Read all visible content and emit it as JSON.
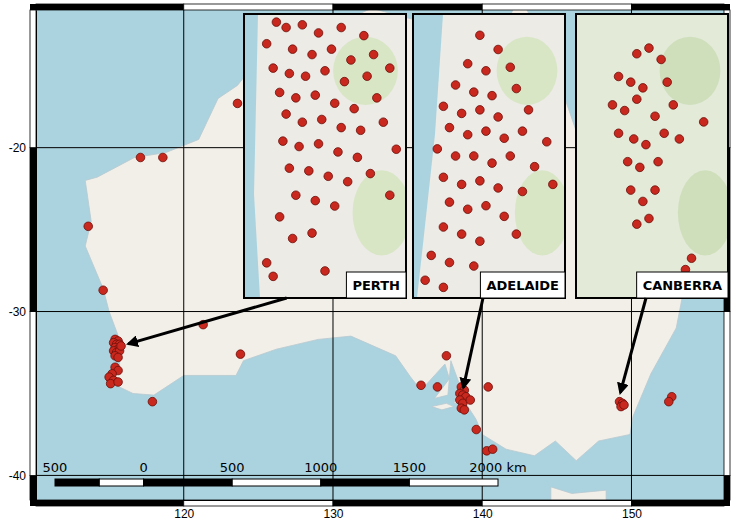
{
  "chart_data": {
    "type": "scatter",
    "xlim": [
      110.1,
      156.2
    ],
    "ylim": [
      -41.5,
      -11.6
    ],
    "xticks": [
      120,
      130,
      140,
      150
    ],
    "yticks": [
      -40,
      -30,
      -20
    ],
    "grid": true,
    "color": "#c8281e",
    "marker": "circle",
    "x": [
      117.1,
      118.6,
      123.6,
      113.6,
      114.6,
      115.4,
      115.6,
      115.3,
      115.5,
      115.7,
      115.4,
      115.6,
      115.3,
      115.5,
      115.7,
      115.4,
      115.6,
      115.8,
      115.4,
      115.6,
      115.2,
      115.0,
      115.3,
      115.1,
      115.6,
      117.9,
      121.3,
      123.8,
      135.9,
      137.0,
      137.6,
      138.6,
      138.8,
      138.5,
      138.7,
      138.9,
      138.5,
      138.7,
      138.6,
      138.8,
      139.2,
      140.4,
      140.3,
      140.7,
      139.6,
      149.2,
      149.4,
      149.3,
      149.5,
      152.7,
      152.5
    ],
    "y": [
      -20.6,
      -20.6,
      -17.3,
      -24.8,
      -28.7,
      -31.7,
      -31.8,
      -31.9,
      -32.0,
      -32.0,
      -32.2,
      -32.3,
      -32.4,
      -32.5,
      -32.4,
      -32.7,
      -32.8,
      -32.1,
      -33.4,
      -33.6,
      -33.8,
      -34.0,
      -34.2,
      -34.4,
      -34.3,
      -35.5,
      -30.8,
      -32.6,
      -34.5,
      -34.6,
      -32.7,
      -34.6,
      -34.8,
      -35.0,
      -35.1,
      -35.2,
      -35.4,
      -35.6,
      -35.9,
      -36.0,
      -35.4,
      -34.6,
      -38.5,
      -38.4,
      -37.2,
      -35.5,
      -35.6,
      -35.8,
      -35.7,
      -35.2,
      -35.5
    ],
    "insets": [
      {
        "title": "PERTH",
        "xlim": [
          115.65,
          116.15
        ],
        "ylim": [
          -32.6,
          -31.55
        ],
        "tick_labels": false,
        "x": [
          115.75,
          115.78,
          115.83,
          115.88,
          115.95,
          116.02,
          115.72,
          115.8,
          115.86,
          115.92,
          115.98,
          116.05,
          115.74,
          115.79,
          115.84,
          115.9,
          115.96,
          116.03,
          116.1,
          115.76,
          115.81,
          115.87,
          115.93,
          115.99,
          116.06,
          115.78,
          115.83,
          115.89,
          115.95,
          116.01,
          116.08,
          115.77,
          115.82,
          115.88,
          115.94,
          116.0,
          116.12,
          115.79,
          115.85,
          115.91,
          115.97,
          116.04,
          115.81,
          115.87,
          115.93,
          116.1,
          115.76,
          115.8,
          115.86,
          115.72,
          115.74,
          115.9
        ],
        "y": [
          -31.58,
          -31.6,
          -31.59,
          -31.62,
          -31.6,
          -31.63,
          -31.66,
          -31.68,
          -31.7,
          -31.68,
          -31.72,
          -31.7,
          -31.75,
          -31.77,
          -31.78,
          -31.76,
          -31.8,
          -31.78,
          -31.75,
          -31.84,
          -31.86,
          -31.85,
          -31.88,
          -31.9,
          -31.86,
          -31.92,
          -31.95,
          -31.94,
          -31.97,
          -31.98,
          -31.95,
          -32.02,
          -32.04,
          -32.03,
          -32.06,
          -32.08,
          -32.05,
          -32.12,
          -32.13,
          -32.15,
          -32.17,
          -32.14,
          -32.22,
          -32.24,
          -32.26,
          -32.22,
          -32.3,
          -32.38,
          -32.36,
          -32.47,
          -32.52,
          -32.5
        ]
      },
      {
        "title": "ADELAIDE",
        "xlim": [
          138.4,
          138.9
        ],
        "ylim": [
          -35.4,
          -34.6
        ],
        "tick_labels": false,
        "x": [
          138.62,
          138.68,
          138.58,
          138.64,
          138.72,
          138.54,
          138.6,
          138.66,
          138.74,
          138.5,
          138.56,
          138.62,
          138.68,
          138.78,
          138.52,
          138.58,
          138.64,
          138.7,
          138.76,
          138.84,
          138.48,
          138.54,
          138.6,
          138.66,
          138.72,
          138.8,
          138.5,
          138.56,
          138.62,
          138.68,
          138.76,
          138.86,
          138.52,
          138.58,
          138.64,
          138.7,
          138.5,
          138.56,
          138.62,
          138.74,
          138.46,
          138.52,
          138.6,
          138.44,
          138.5,
          138.66
        ],
        "y": [
          -34.66,
          -34.7,
          -34.74,
          -34.76,
          -34.75,
          -34.8,
          -34.82,
          -34.83,
          -34.81,
          -34.86,
          -34.88,
          -34.87,
          -34.89,
          -34.87,
          -34.92,
          -34.94,
          -34.93,
          -34.95,
          -34.93,
          -34.96,
          -34.98,
          -35.0,
          -35.0,
          -35.02,
          -35.0,
          -35.03,
          -35.06,
          -35.08,
          -35.07,
          -35.09,
          -35.1,
          -35.08,
          -35.13,
          -35.15,
          -35.14,
          -35.17,
          -35.2,
          -35.22,
          -35.24,
          -35.22,
          -35.28,
          -35.3,
          -35.31,
          -35.35,
          -35.37,
          -35.34
        ]
      },
      {
        "title": "CANBERRA",
        "xlim": [
          148.9,
          149.4
        ],
        "ylim": [
          -35.55,
          -35.05
        ],
        "tick_labels": false,
        "x": [
          149.1,
          149.14,
          149.18,
          149.04,
          149.08,
          149.12,
          149.2,
          149.02,
          149.06,
          149.1,
          149.16,
          149.22,
          149.04,
          149.09,
          149.13,
          149.19,
          149.24,
          149.07,
          149.11,
          149.17,
          149.08,
          149.12,
          149.16,
          149.1,
          149.14,
          149.32,
          149.28,
          149.26
        ],
        "y": [
          -35.12,
          -35.11,
          -35.13,
          -35.16,
          -35.17,
          -35.18,
          -35.17,
          -35.21,
          -35.22,
          -35.2,
          -35.23,
          -35.21,
          -35.26,
          -35.27,
          -35.28,
          -35.26,
          -35.27,
          -35.31,
          -35.32,
          -35.31,
          -35.36,
          -35.38,
          -35.36,
          -35.42,
          -35.41,
          -35.24,
          -35.48,
          -35.5
        ]
      }
    ],
    "scale_bar": {
      "ticks": [
        {
          "value": -500,
          "label": "500"
        },
        0,
        500,
        1000,
        1500,
        {
          "value": 2000,
          "label": "2000 km"
        }
      ]
    }
  }
}
